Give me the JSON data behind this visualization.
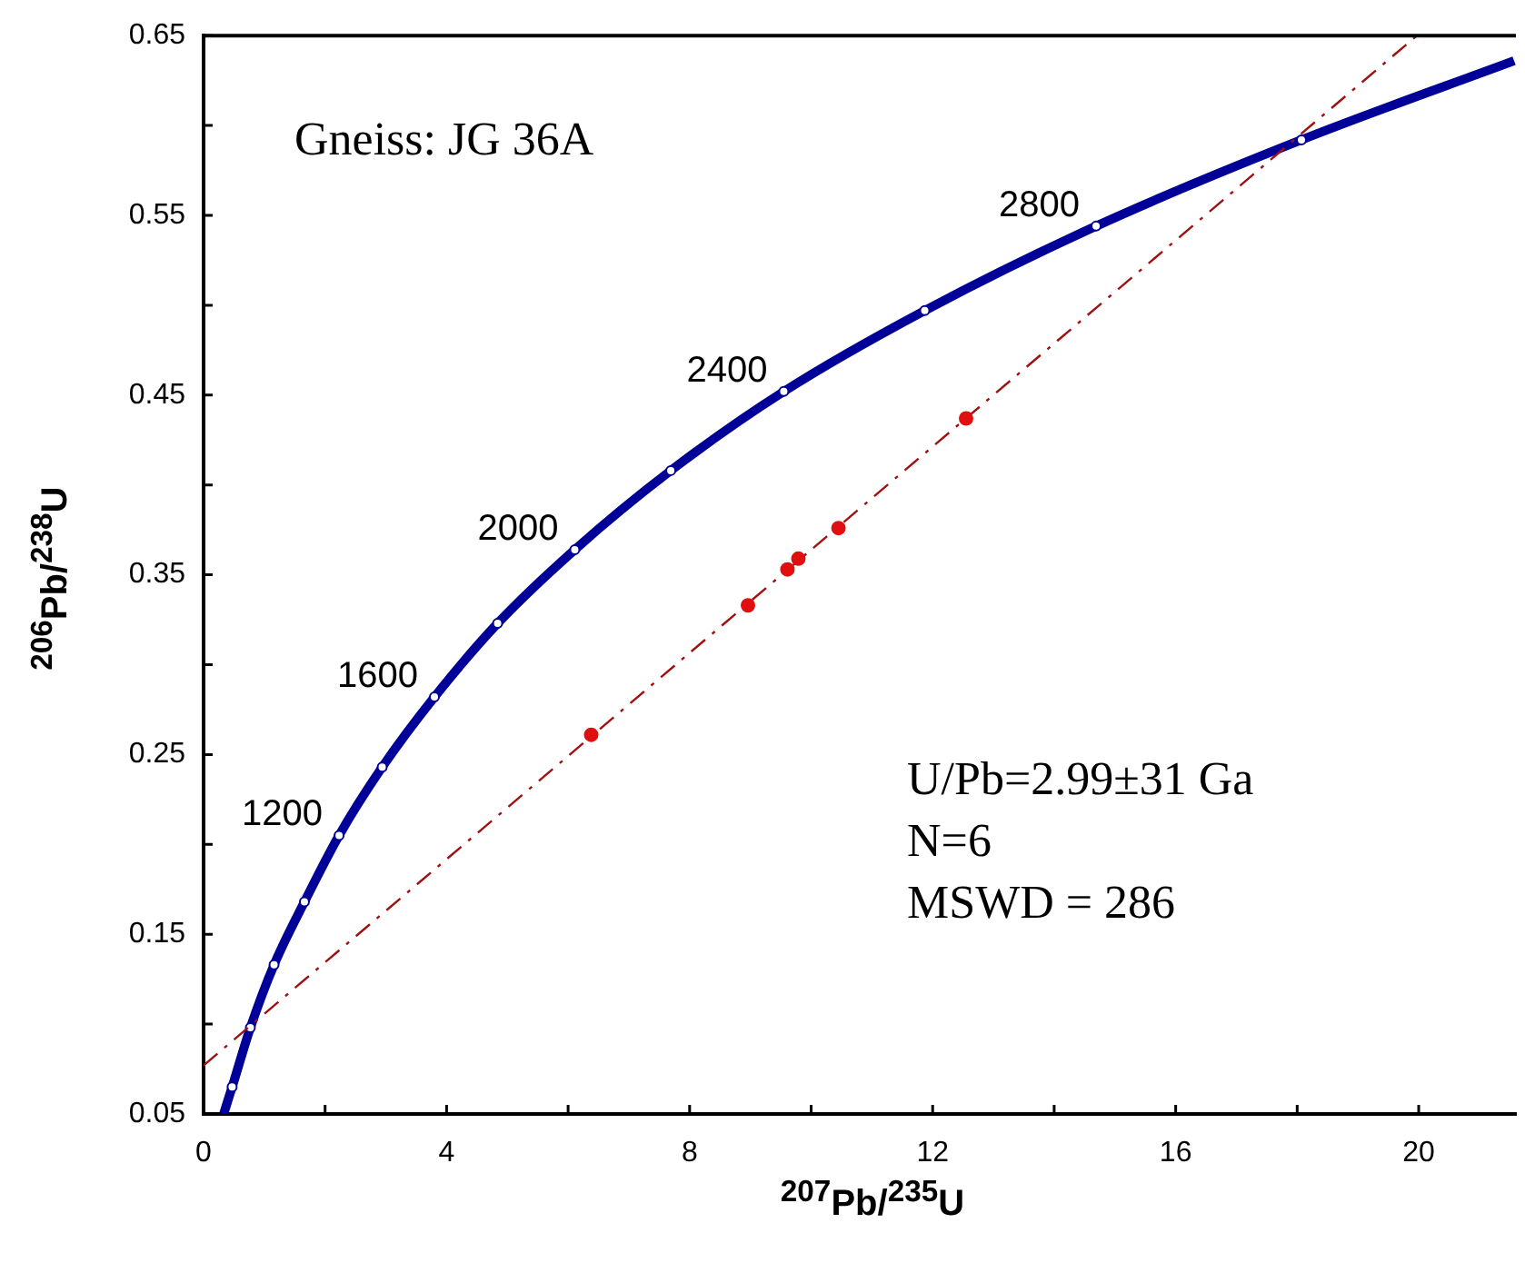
{
  "chart_data": {
    "type": "scatter",
    "xlabel": "$^{207}$Pb/$^{235}$U",
    "ylabel": "$^{206}$Pb/$^{238}$U",
    "xlim": [
      0,
      21.6
    ],
    "ylim": [
      0.05,
      0.65
    ],
    "xticks": [
      0,
      {
        "value": 2,
        "label": null
      },
      4,
      {
        "value": 6,
        "label": null
      },
      8,
      {
        "value": 10,
        "label": null
      },
      12,
      {
        "value": 14,
        "label": null
      },
      16,
      {
        "value": 18,
        "label": null
      },
      20
    ],
    "yticks": [
      0.05,
      {
        "value": 0.1,
        "label": null
      },
      0.15,
      {
        "value": 0.2,
        "label": null
      },
      0.25,
      {
        "value": 0.3,
        "label": null
      },
      0.35,
      {
        "value": 0.4,
        "label": null
      },
      0.45,
      {
        "value": 0.5,
        "label": null
      },
      0.55,
      {
        "value": 0.6,
        "label": null
      },
      0.65
    ],
    "grid": false,
    "legend": false,
    "annotations": [
      "Gneiss: JG 36A",
      "U/Pb=2.99±31 Ga",
      "N=6",
      "MSWD = 286",
      {
        "text": "1200",
        "x": 2.23,
        "y": 0.205
      },
      {
        "text": "1600",
        "x": 3.8,
        "y": 0.282
      },
      {
        "text": "2000",
        "x": 6.11,
        "y": 0.364
      },
      {
        "text": "2400",
        "x": 9.55,
        "y": 0.452
      },
      {
        "text": "2800",
        "x": 14.69,
        "y": 0.544
      }
    ],
    "series": [
      {
        "type": "line",
        "color": "#000099",
        "marker": "none",
        "x": [
          0.33,
          0.47,
          0.77,
          1.16,
          1.66,
          2.23,
          2.94,
          3.8,
          4.84,
          6.11,
          7.69,
          9.55,
          11.87,
          14.69,
          18.07,
          21.57
        ],
        "values": [
          0.05,
          0.065,
          0.098,
          0.133,
          0.168,
          0.205,
          0.243,
          0.282,
          0.323,
          0.364,
          0.408,
          0.452,
          0.497,
          0.544,
          0.592,
          0.636
        ]
      },
      {
        "type": "scatter",
        "color": "#ffffff",
        "marker": "circle",
        "x": [
          0.47,
          0.77,
          1.16,
          1.66,
          2.23,
          2.94,
          3.8,
          4.84,
          6.11,
          7.69,
          9.55,
          11.87,
          14.69,
          18.07
        ],
        "values": [
          0.065,
          0.098,
          0.133,
          0.168,
          0.205,
          0.243,
          0.282,
          0.323,
          0.364,
          0.408,
          0.452,
          0.497,
          0.544,
          0.592
        ]
      },
      {
        "type": "line",
        "color": "#a01010",
        "marker": "none",
        "line_style": "dashed",
        "x": [
          0,
          19.97
        ],
        "values": [
          0.077,
          0.65
        ]
      },
      {
        "type": "scatter",
        "color": "#e01010",
        "marker": "circle",
        "x": [
          6.38,
          8.96,
          9.61,
          9.79,
          10.45,
          12.55
        ],
        "values": [
          0.261,
          0.333,
          0.353,
          0.359,
          0.376,
          0.437
        ]
      }
    ]
  }
}
